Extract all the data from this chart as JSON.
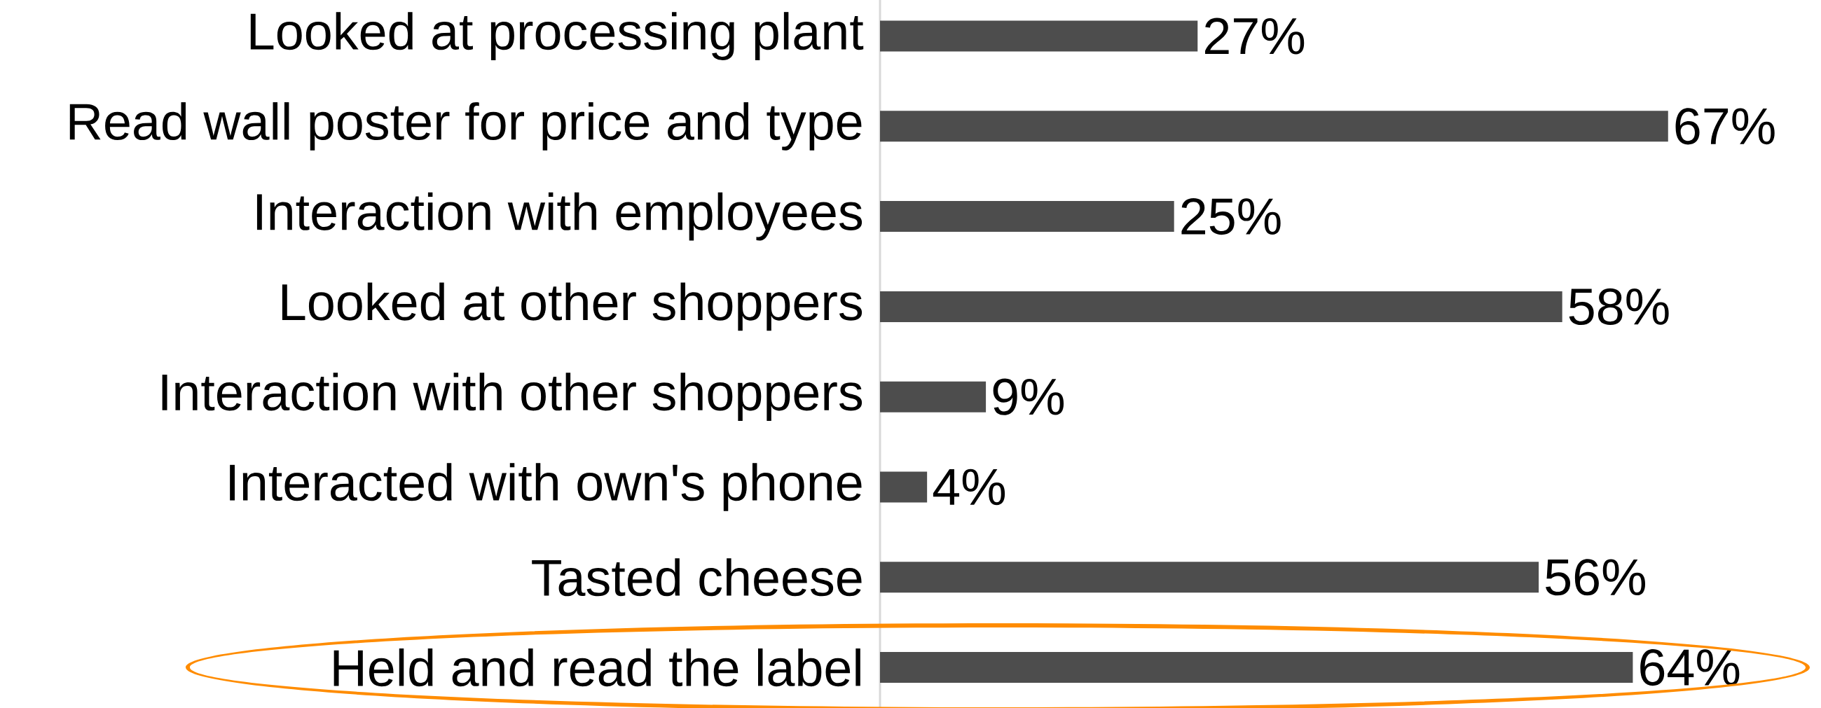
{
  "chart_data": {
    "type": "bar",
    "orientation": "horizontal",
    "categories": [
      "Looked at processing plant",
      "Read wall poster for price and type",
      "Interaction with employees",
      "Looked at other shoppers",
      "Interaction with other shoppers",
      "Interacted with own's phone",
      "Tasted cheese",
      "Held and read the label"
    ],
    "values": [
      27,
      67,
      25,
      58,
      9,
      4,
      56,
      64
    ],
    "value_labels": [
      "27%",
      "67%",
      "25%",
      "58%",
      "9%",
      "4%",
      "56%",
      "64%"
    ],
    "color": "#4d4d4d"
  }
}
